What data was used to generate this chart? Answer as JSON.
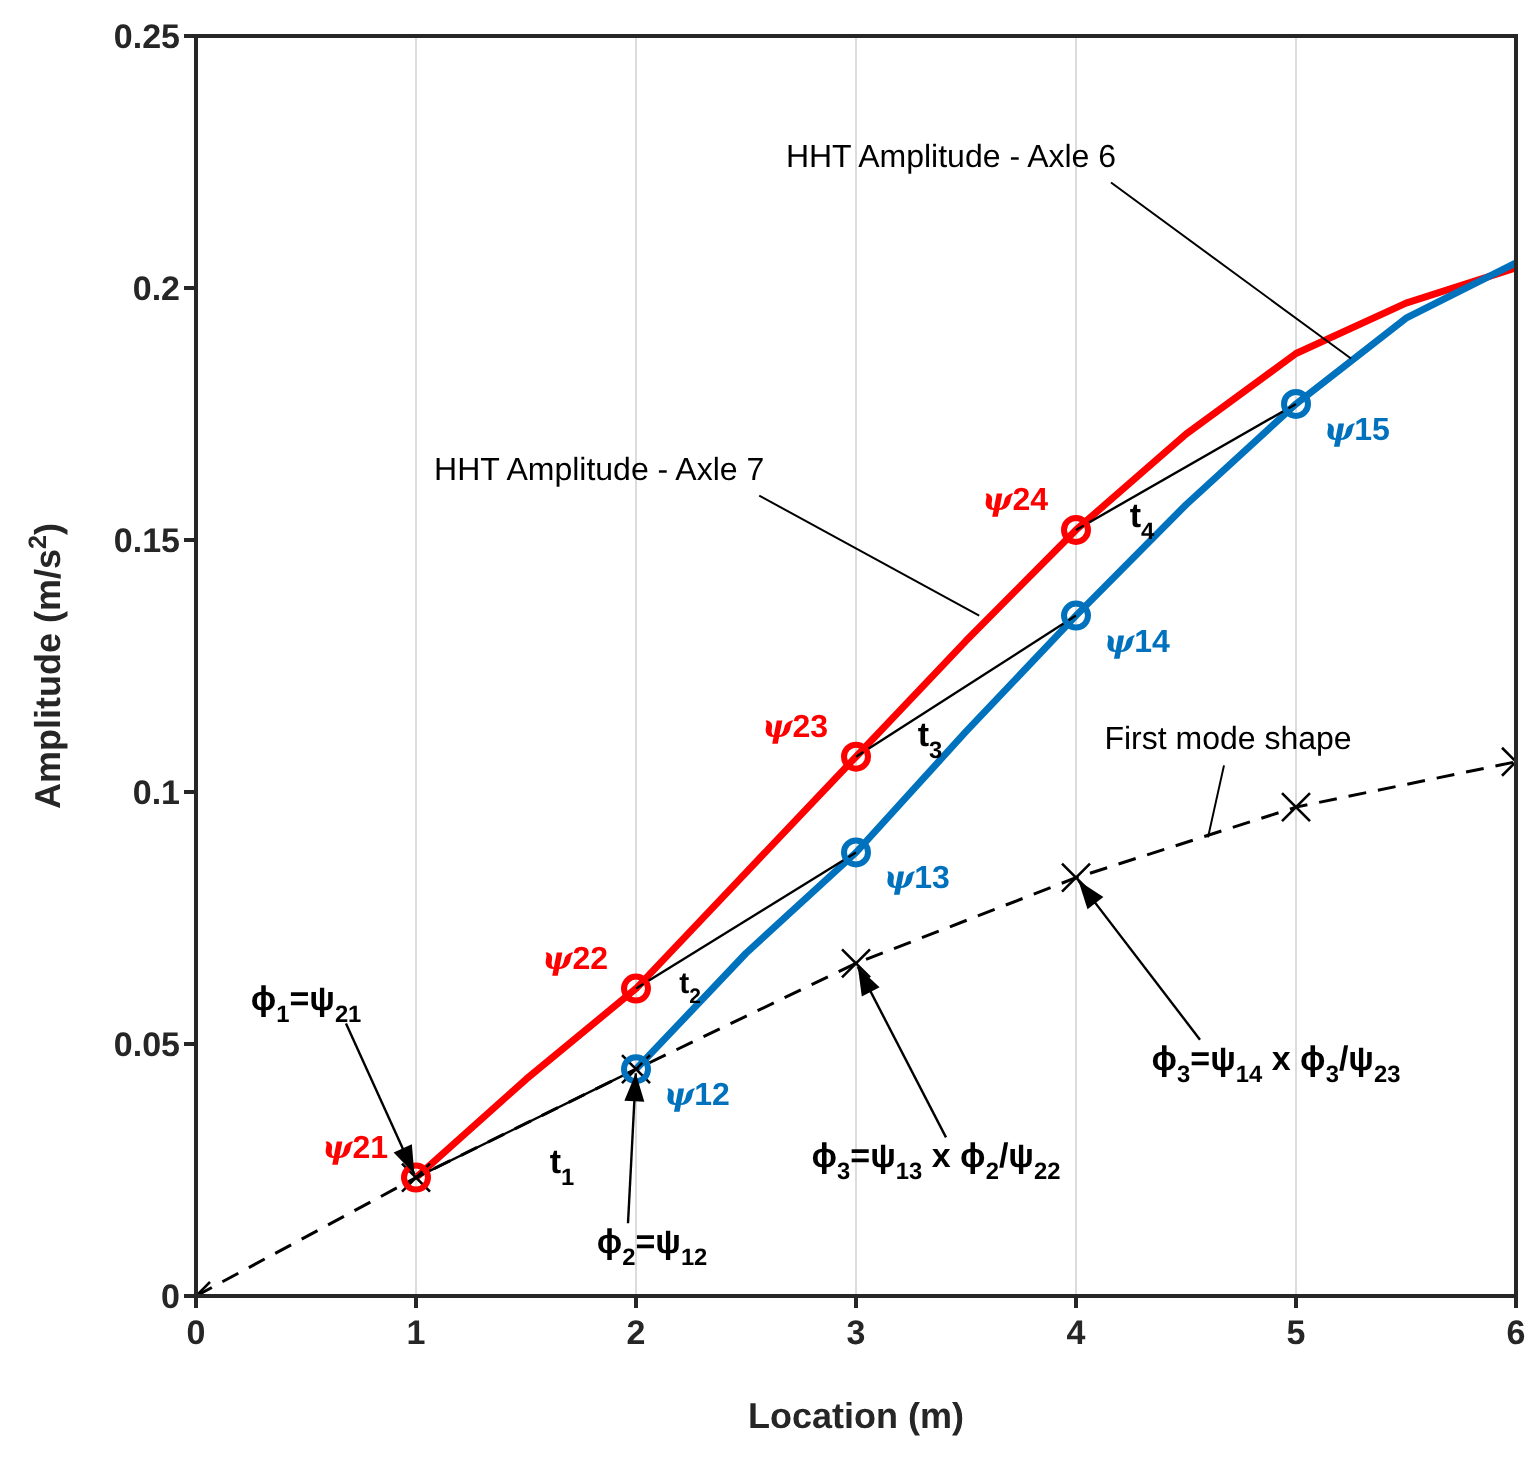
{
  "chart_data": {
    "type": "line",
    "xlabel": "Location (m)",
    "ylabel": "Amplitude (m/s$^{2}$)",
    "xlim": [
      0,
      6
    ],
    "ylim": [
      0,
      0.25
    ],
    "xticks": [
      0,
      1,
      2,
      3,
      4,
      5,
      6
    ],
    "yticks": [
      0,
      0.05,
      0.1,
      0.15,
      0.2,
      0.25
    ],
    "grid": "x",
    "series": [
      {
        "color": "#ff0000",
        "marker": "none",
        "line_style": "solid",
        "x": [
          1,
          1.5,
          2,
          2.5,
          3,
          3.5,
          4,
          4.5,
          5,
          5.5,
          6
        ],
        "values": [
          0.0235,
          0.043,
          0.061,
          0.084,
          0.107,
          0.13,
          0.152,
          0.171,
          0.187,
          0.197,
          0.204
        ]
      },
      {
        "color": "#0072bd",
        "marker": "none",
        "line_style": "solid",
        "x": [
          2,
          2.5,
          3,
          3.5,
          4,
          4.5,
          5,
          5.5,
          6
        ],
        "values": [
          0.045,
          0.068,
          0.088,
          0.112,
          0.135,
          0.157,
          0.177,
          0.194,
          0.205
        ]
      },
      {
        "color": "#000000",
        "marker": "cross",
        "line_style": "dashed",
        "x": [
          0,
          1,
          2,
          3,
          4,
          5,
          6
        ],
        "values": [
          0,
          0.0235,
          0.045,
          0.066,
          0.083,
          0.097,
          0.106
        ]
      },
      {
        "type": "line",
        "color": "#000000",
        "marker": "none",
        "line_style": "solid",
        "x": [
          1,
          2
        ],
        "values": [
          0.0235,
          0.045
        ]
      },
      {
        "type": "line",
        "color": "#000000",
        "marker": "none",
        "line_style": "solid",
        "x": [
          2,
          3
        ],
        "values": [
          0.061,
          0.088
        ]
      },
      {
        "type": "line",
        "color": "#000000",
        "marker": "none",
        "line_style": "solid",
        "x": [
          3,
          4
        ],
        "values": [
          0.107,
          0.135
        ]
      },
      {
        "type": "line",
        "color": "#000000",
        "marker": "none",
        "line_style": "solid",
        "x": [
          4,
          5
        ],
        "values": [
          0.152,
          0.177
        ]
      },
      {
        "type": "scatter",
        "color": "#ff0000",
        "marker": "circle",
        "x": [
          1,
          2,
          3,
          4
        ],
        "values": [
          0.0235,
          0.061,
          0.107,
          0.152
        ],
        "value_labels": [
          "ψ21",
          "ψ22",
          "ψ23",
          "ψ24"
        ]
      },
      {
        "type": "scatter",
        "color": "#0072bd",
        "marker": "circle",
        "x": [
          2,
          3,
          4,
          5
        ],
        "values": [
          0.045,
          0.088,
          0.135,
          0.177
        ],
        "value_labels": [
          "ψ12",
          "ψ13",
          "ψ14",
          "ψ15"
        ]
      }
    ],
    "annotations": [
      {
        "text": "HHT Amplitude - Axle 6",
        "x": 5.25,
        "y": 0.186
      },
      {
        "text": "HHT Amplitude - Axle 7",
        "x": 3.56,
        "y": 0.135
      },
      {
        "text": "First mode shape",
        "x": 4.6,
        "y": 0.091
      },
      {
        "text": "ϕ$_{1}$=ψ$_{21}$",
        "x": 1,
        "y": 0.0235
      },
      {
        "text": "ϕ$_{2}$=ψ$_{12}$",
        "x": 2,
        "y": 0.045
      },
      {
        "text": "ϕ$_{3}$=ψ$_{13}$ x ϕ$_{2}$/ψ$_{22}$",
        "x": 3,
        "y": 0.066
      },
      {
        "text": "ϕ$_{3}$=ψ$_{14}$ x ϕ$_{3}$/ψ$_{23}$",
        "x": 4,
        "y": 0.083
      },
      {
        "text": "t$_{1}$",
        "x": 1.5,
        "y": 0.034
      },
      {
        "text": "t$_{2}$",
        "x": 2.5,
        "y": 0.0745
      },
      {
        "text": "t$_{3}$",
        "x": 3.5,
        "y": 0.121
      },
      {
        "text": "t$_{4}$",
        "x": 4.5,
        "y": 0.1645
      }
    ]
  }
}
